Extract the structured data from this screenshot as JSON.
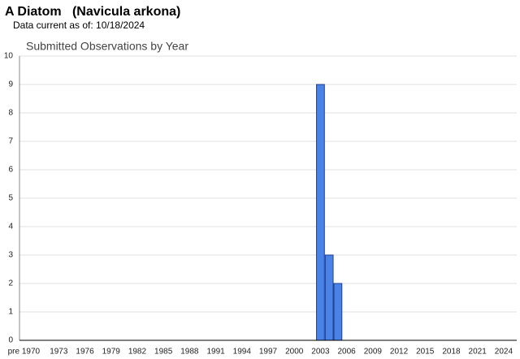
{
  "header": {
    "title": "A Diatom   (Navicula arkona)",
    "subtitle": "Data current as of: 10/18/2024"
  },
  "chart_data": {
    "type": "bar",
    "title": "Submitted Observations by Year",
    "categories": [
      "pre 1970",
      null,
      null,
      null,
      "1973",
      null,
      null,
      "1976",
      null,
      null,
      "1979",
      null,
      null,
      "1982",
      null,
      null,
      "1985",
      null,
      null,
      "1988",
      null,
      null,
      "1991",
      null,
      null,
      "1994",
      null,
      null,
      "1997",
      null,
      null,
      "2000",
      null,
      null,
      "2003",
      null,
      null,
      "2006",
      null,
      null,
      "2009",
      null,
      null,
      "2012",
      null,
      null,
      "2015",
      null,
      null,
      "2018",
      null,
      null,
      "2021",
      null,
      null,
      "2024",
      null
    ],
    "values": [
      0,
      0,
      0,
      0,
      0,
      0,
      0,
      0,
      0,
      0,
      0,
      0,
      0,
      0,
      0,
      0,
      0,
      0,
      0,
      0,
      0,
      0,
      0,
      0,
      0,
      0,
      0,
      0,
      0,
      0,
      0,
      0,
      0,
      0,
      9,
      3,
      2,
      0,
      0,
      0,
      0,
      0,
      0,
      0,
      0,
      0,
      0,
      0,
      0,
      0,
      0,
      0,
      0,
      0,
      0,
      0,
      0
    ],
    "color": "#4a82e6",
    "ylim": [
      0,
      10
    ],
    "yticks": [
      0,
      1,
      2,
      3,
      4,
      5,
      6,
      7,
      8,
      9,
      10
    ],
    "grid": true
  }
}
